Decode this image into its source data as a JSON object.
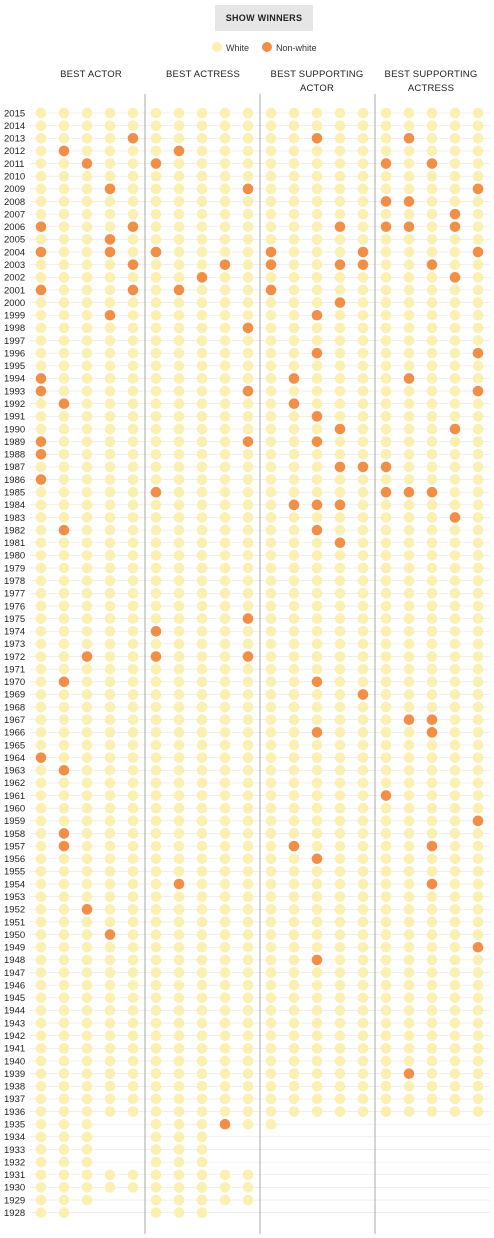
{
  "header": {
    "button_label": "SHOW WINNERS"
  },
  "legend": {
    "white_label": "White",
    "nonwhite_label": "Non-white"
  },
  "colors": {
    "white": "#fcefb2",
    "nonwhite": "#f38e46",
    "rule": "#e5e5e5",
    "divider": "#aaaaaa"
  },
  "categories": [
    {
      "id": "actor",
      "label_lines": [
        "BEST ACTOR"
      ]
    },
    {
      "id": "actress",
      "label_lines": [
        "BEST ACTRESS"
      ]
    },
    {
      "id": "supporting_actor",
      "label_lines": [
        "BEST SUPPORTING",
        "ACTOR"
      ]
    },
    {
      "id": "supporting_actress",
      "label_lines": [
        "BEST SUPPORTING",
        "ACTRESS"
      ]
    }
  ],
  "chart_data": {
    "type": "scatter",
    "title": "",
    "years": [
      2015,
      2014,
      2013,
      2012,
      2011,
      2010,
      2009,
      2008,
      2007,
      2006,
      2005,
      2004,
      2003,
      2002,
      2001,
      2000,
      1999,
      1998,
      1997,
      1996,
      1995,
      1994,
      1993,
      1992,
      1991,
      1990,
      1989,
      1988,
      1987,
      1986,
      1985,
      1984,
      1983,
      1982,
      1981,
      1980,
      1979,
      1978,
      1977,
      1976,
      1975,
      1974,
      1973,
      1972,
      1971,
      1970,
      1969,
      1968,
      1967,
      1966,
      1965,
      1964,
      1963,
      1962,
      1961,
      1960,
      1959,
      1958,
      1957,
      1956,
      1955,
      1954,
      1953,
      1952,
      1951,
      1950,
      1949,
      1948,
      1947,
      1946,
      1945,
      1944,
      1943,
      1942,
      1941,
      1940,
      1939,
      1938,
      1937,
      1936,
      1935,
      1934,
      1933,
      1932,
      1931,
      1930,
      1929,
      1928
    ],
    "nominee_counts": {
      "actor": {
        "default": 5,
        "1935": 3,
        "1934": 3,
        "1933": 3,
        "1932": 3,
        "1930": 5,
        "1929": 3,
        "1928": 2
      },
      "actress": {
        "default": 5,
        "1935": 6,
        "1934": 3,
        "1933": 3,
        "1932": 3,
        "1931": 5,
        "1930": 5,
        "1929": 5,
        "1928": 3
      },
      "supporting_actor": {
        "default": 5,
        "first_year": 1936
      },
      "supporting_actress": {
        "default": 5,
        "first_year": 1936
      }
    },
    "nonwhite_nominees": {
      "actor": {
        "2013": [
          5
        ],
        "2012": [
          2
        ],
        "2011": [
          3
        ],
        "2009": [
          4
        ],
        "2006": [
          1,
          5
        ],
        "2005": [
          4
        ],
        "2004": [
          1,
          4
        ],
        "2003": [
          5
        ],
        "2001": [
          1,
          5
        ],
        "1999": [
          4
        ],
        "1994": [
          1
        ],
        "1993": [
          1
        ],
        "1992": [
          2
        ],
        "1989": [
          1
        ],
        "1988": [
          1
        ],
        "1986": [
          1
        ],
        "1982": [
          2
        ],
        "1972": [
          3
        ],
        "1970": [
          2
        ],
        "1964": [
          1
        ],
        "1963": [
          2
        ],
        "1958": [
          2
        ],
        "1957": [
          2
        ],
        "1952": [
          3
        ],
        "1950": [
          4
        ]
      },
      "actress": {
        "2012": [
          2
        ],
        "2011": [
          1
        ],
        "2009": [
          5
        ],
        "2004": [
          1
        ],
        "2003": [
          4
        ],
        "2002": [
          3
        ],
        "2001": [
          2
        ],
        "1998": [
          5
        ],
        "1993": [
          5
        ],
        "1989": [
          5
        ],
        "1985": [
          1
        ],
        "1975": [
          5
        ],
        "1974": [
          1
        ],
        "1972": [
          1,
          5
        ],
        "1954": [
          2
        ],
        "1935": [
          4
        ]
      },
      "supporting_actor": {
        "2013": [
          3
        ],
        "2006": [
          4
        ],
        "2004": [
          1,
          5
        ],
        "2003": [
          1,
          4,
          5
        ],
        "2001": [
          1
        ],
        "2000": [
          4
        ],
        "1999": [
          3
        ],
        "1996": [
          3
        ],
        "1994": [
          2
        ],
        "1992": [
          2
        ],
        "1991": [
          3
        ],
        "1990": [
          4
        ],
        "1989": [
          3
        ],
        "1987": [
          4,
          5
        ],
        "1984": [
          2,
          3,
          4
        ],
        "1982": [
          3
        ],
        "1981": [
          4
        ],
        "1970": [
          3
        ],
        "1969": [
          5
        ],
        "1966": [
          3
        ],
        "1957": [
          2
        ],
        "1956": [
          3
        ],
        "1948": [
          3
        ]
      },
      "supporting_actress": {
        "2013": [
          2
        ],
        "2011": [
          1,
          3
        ],
        "2009": [
          5
        ],
        "2008": [
          1,
          2
        ],
        "2007": [
          4
        ],
        "2006": [
          1,
          2,
          4
        ],
        "2004": [
          5
        ],
        "2003": [
          3
        ],
        "2002": [
          4
        ],
        "1996": [
          5
        ],
        "1994": [
          2
        ],
        "1993": [
          5
        ],
        "1990": [
          4
        ],
        "1987": [
          1
        ],
        "1985": [
          1,
          2,
          3
        ],
        "1983": [
          4
        ],
        "1967": [
          2,
          3
        ],
        "1966": [
          3
        ],
        "1961": [
          1
        ],
        "1959": [
          5
        ],
        "1957": [
          3
        ],
        "1954": [
          3
        ],
        "1949": [
          5
        ],
        "1939": [
          2
        ]
      }
    }
  }
}
